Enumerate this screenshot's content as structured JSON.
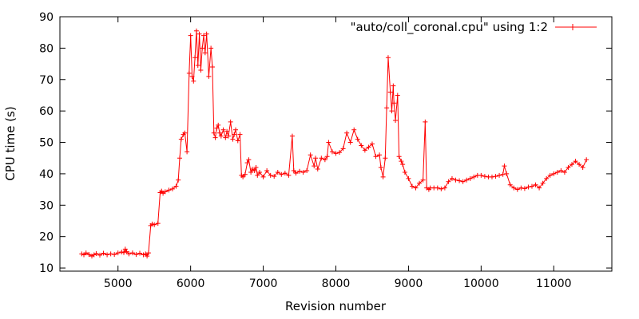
{
  "chart_data": {
    "type": "line",
    "xlabel": "Revision number",
    "ylabel": "CPU time (s)",
    "xlim": [
      4200,
      11800
    ],
    "ylim": [
      9,
      90
    ],
    "x_ticks": [
      5000,
      6000,
      7000,
      8000,
      9000,
      10000,
      11000
    ],
    "y_ticks": [
      10,
      20,
      30,
      40,
      50,
      60,
      70,
      80,
      90
    ],
    "legend_position": "top-right",
    "grid": false,
    "series": [
      {
        "name": "\"auto/coll_coronal.cpu\" using 1:2",
        "color": "#ff0000",
        "marker": "plus",
        "x": [
          4500,
          4530,
          4560,
          4600,
          4640,
          4670,
          4700,
          4750,
          4800,
          4850,
          4900,
          4950,
          5000,
          5050,
          5080,
          5100,
          5120,
          5150,
          5200,
          5250,
          5300,
          5350,
          5380,
          5400,
          5420,
          5450,
          5470,
          5500,
          5550,
          5580,
          5600,
          5620,
          5650,
          5700,
          5750,
          5800,
          5830,
          5850,
          5870,
          5900,
          5920,
          5950,
          5980,
          6000,
          6020,
          6040,
          6060,
          6080,
          6100,
          6120,
          6140,
          6160,
          6180,
          6200,
          6220,
          6250,
          6280,
          6300,
          6320,
          6340,
          6360,
          6380,
          6400,
          6420,
          6450,
          6480,
          6500,
          6520,
          6550,
          6580,
          6600,
          6620,
          6650,
          6680,
          6700,
          6720,
          6750,
          6780,
          6800,
          6830,
          6850,
          6880,
          6900,
          6920,
          6950,
          7000,
          7050,
          7100,
          7150,
          7200,
          7250,
          7300,
          7350,
          7400,
          7420,
          7450,
          7500,
          7550,
          7600,
          7650,
          7700,
          7720,
          7750,
          7800,
          7850,
          7880,
          7900,
          7950,
          8000,
          8050,
          8100,
          8150,
          8200,
          8250,
          8300,
          8350,
          8400,
          8450,
          8500,
          8550,
          8600,
          8620,
          8650,
          8680,
          8700,
          8720,
          8750,
          8770,
          8790,
          8800,
          8820,
          8850,
          8870,
          8900,
          8920,
          8950,
          9000,
          9050,
          9100,
          9150,
          9200,
          9230,
          9250,
          9280,
          9300,
          9350,
          9400,
          9450,
          9500,
          9550,
          9600,
          9650,
          9700,
          9750,
          9800,
          9850,
          9900,
          9950,
          10000,
          10050,
          10100,
          10150,
          10200,
          10250,
          10300,
          10320,
          10350,
          10400,
          10450,
          10500,
          10550,
          10600,
          10650,
          10700,
          10750,
          10800,
          10850,
          10900,
          10950,
          11000,
          11050,
          11100,
          11150,
          11200,
          11250,
          11300,
          11350,
          11400,
          11450
        ],
        "y": [
          14.5,
          14.2,
          14.8,
          14.3,
          13.8,
          14.2,
          14.6,
          14.1,
          14.7,
          14.2,
          14.5,
          14.3,
          14.8,
          15.1,
          14.9,
          16.0,
          15.2,
          14.5,
          14.8,
          14.3,
          14.7,
          14.2,
          14.5,
          13.8,
          14.8,
          23.5,
          24.0,
          23.8,
          24.2,
          34.0,
          34.5,
          33.8,
          34.3,
          34.8,
          35.2,
          36.0,
          38.0,
          45.0,
          51.0,
          52.5,
          53.0,
          47.0,
          72.0,
          84.0,
          71.0,
          69.5,
          77.0,
          85.5,
          74.5,
          84.5,
          73.0,
          80.0,
          84.0,
          78.5,
          84.5,
          71.0,
          80.0,
          74.0,
          53.0,
          51.5,
          54.5,
          55.5,
          53.0,
          52.0,
          54.0,
          51.5,
          53.5,
          52.0,
          56.5,
          51.0,
          52.5,
          54.0,
          50.5,
          52.5,
          39.5,
          39.0,
          39.8,
          43.5,
          44.5,
          40.5,
          41.5,
          41.0,
          42.0,
          39.5,
          40.5,
          39.0,
          41.0,
          39.5,
          39.2,
          40.5,
          39.8,
          40.2,
          39.5,
          52.0,
          41.0,
          40.2,
          40.8,
          40.5,
          41.0,
          46.0,
          42.5,
          45.0,
          41.5,
          45.0,
          44.5,
          45.5,
          50.0,
          47.0,
          46.5,
          46.8,
          48.0,
          53.0,
          50.0,
          54.0,
          51.0,
          49.0,
          47.5,
          48.5,
          49.5,
          45.5,
          46.0,
          42.0,
          39.0,
          45.0,
          61.0,
          77.0,
          66.0,
          60.0,
          68.0,
          62.5,
          57.0,
          65.0,
          45.5,
          44.0,
          43.0,
          40.5,
          38.5,
          36.0,
          35.5,
          37.0,
          38.0,
          56.5,
          35.5,
          35.0,
          35.5,
          35.5,
          35.5,
          35.2,
          35.5,
          37.5,
          38.5,
          38.0,
          37.8,
          37.5,
          38.0,
          38.5,
          39.0,
          39.5,
          39.5,
          39.2,
          39.0,
          39.0,
          39.2,
          39.5,
          39.8,
          42.5,
          40.0,
          36.5,
          35.5,
          35.0,
          35.5,
          35.3,
          35.8,
          36.0,
          36.5,
          35.5,
          37.0,
          38.5,
          39.5,
          40.0,
          40.5,
          41.0,
          40.5,
          42.0,
          43.0,
          44.0,
          43.0,
          42.0,
          44.5
        ]
      }
    ]
  }
}
